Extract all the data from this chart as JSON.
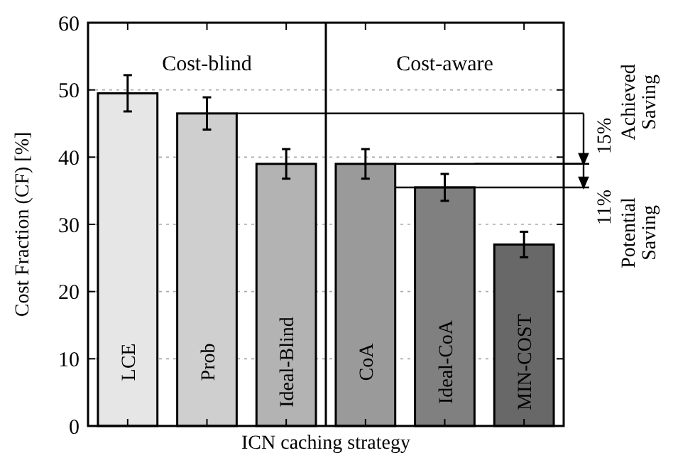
{
  "chart_data": {
    "type": "bar",
    "xlabel": "ICN caching strategy",
    "ylabel": "Cost Fraction (CF) [%]",
    "categories": [
      "LCE",
      "Prob",
      "Ideal-Blind",
      "CoA",
      "Ideal-CoA",
      "MIN-COST"
    ],
    "values": [
      49.5,
      46.5,
      39,
      39,
      35.5,
      27
    ],
    "errors": [
      2.7,
      2.4,
      2.2,
      2.2,
      2,
      1.9
    ],
    "colors": [
      "#e6e6e6",
      "#cfcfcf",
      "#b3b3b3",
      "#9a9a9a",
      "#808080",
      "#686868"
    ],
    "ylim": [
      0,
      60
    ],
    "yticks": [
      0,
      10,
      20,
      30,
      40,
      50,
      60
    ],
    "grid": "y",
    "annotations": [
      "Cost-blind",
      "Cost-aware",
      "15%",
      "Achieved Saving",
      "11%",
      "Potential Saving"
    ]
  }
}
